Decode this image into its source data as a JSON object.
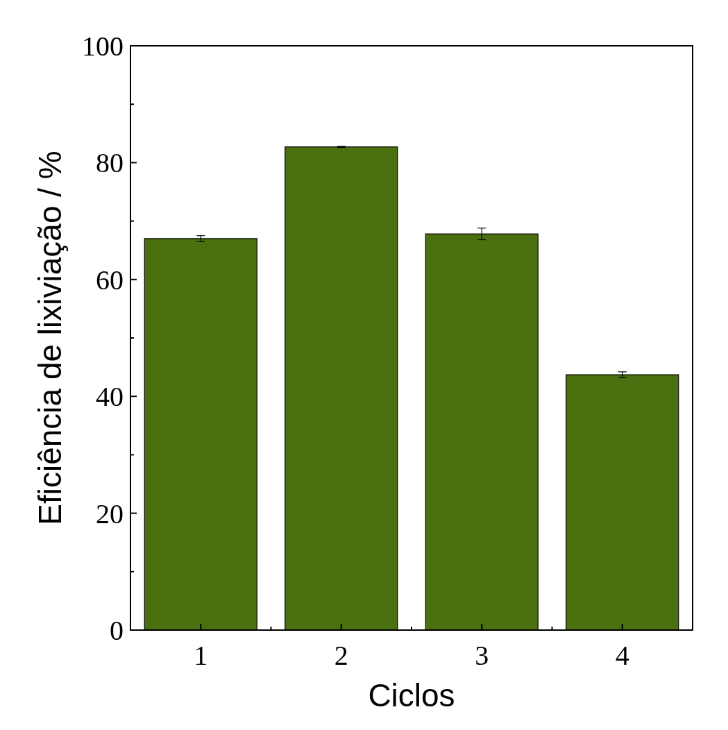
{
  "chart_data": {
    "type": "bar",
    "xlabel": "Ciclos",
    "ylabel": "Eficiência de lixiviação / %",
    "categories": [
      "1",
      "2",
      "3",
      "4"
    ],
    "values": [
      67.0,
      82.7,
      67.8,
      43.7
    ],
    "errors": [
      0.5,
      0.1,
      1.0,
      0.5
    ],
    "color": "#4a7010",
    "ylim": [
      0,
      100
    ],
    "yticks": [
      0,
      {
        "value": 10,
        "label": null
      },
      20,
      {
        "value": 30,
        "label": null
      },
      40,
      {
        "value": 50,
        "label": null
      },
      60,
      {
        "value": 70,
        "label": null
      },
      80,
      {
        "value": 90,
        "label": null
      },
      100
    ],
    "grid": false
  }
}
